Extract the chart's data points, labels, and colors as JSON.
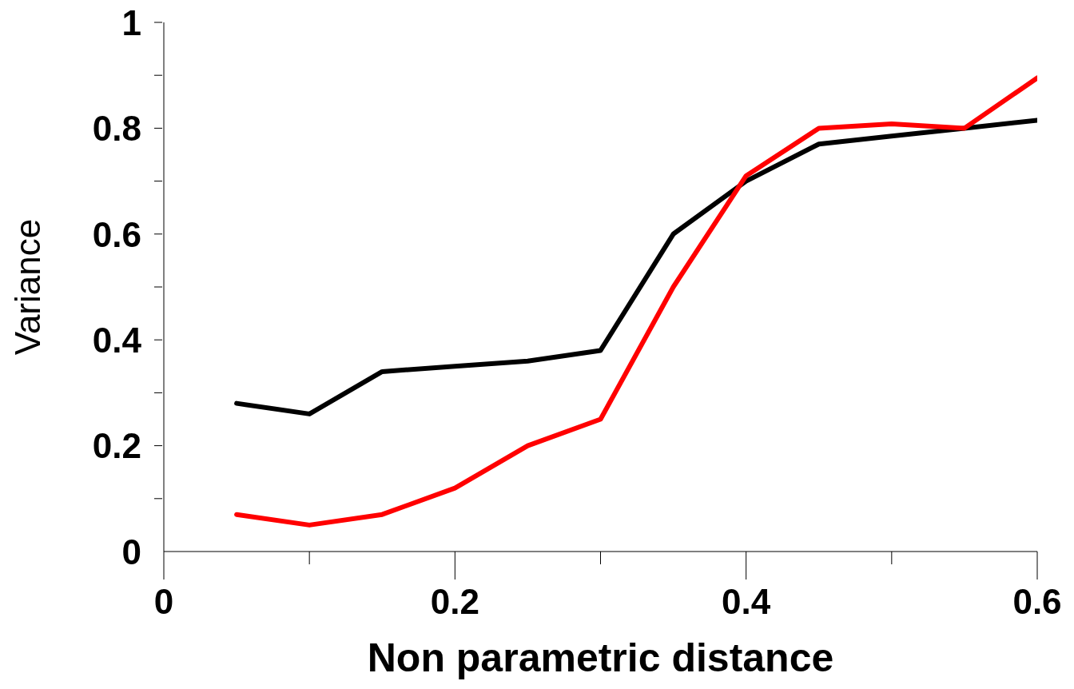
{
  "chart_data": {
    "type": "line",
    "xlabel": "Non parametric distance",
    "ylabel": "Variance",
    "x": [
      0.05,
      0.1,
      0.15,
      0.2,
      0.25,
      0.3,
      0.35,
      0.4,
      0.45,
      0.5,
      0.55,
      0.6
    ],
    "series": [
      {
        "color": "#000000",
        "values": [
          0.28,
          0.26,
          0.34,
          0.35,
          0.36,
          0.38,
          0.6,
          0.7,
          0.77,
          0.785,
          0.8,
          0.815
        ]
      },
      {
        "color": "#ff0000",
        "values": [
          0.07,
          0.05,
          0.07,
          0.12,
          0.2,
          0.25,
          0.5,
          0.71,
          0.8,
          0.808,
          0.8,
          0.895
        ]
      }
    ],
    "xlim": [
      0,
      0.6
    ],
    "xticks": [
      0,
      {
        "value": 0.1,
        "label": null
      },
      0.2,
      {
        "value": 0.3,
        "label": null
      },
      0.4,
      {
        "value": 0.5,
        "label": null
      },
      0.6
    ],
    "ylim": [
      0,
      1
    ],
    "yticks": [
      0,
      {
        "value": 0.1,
        "label": null
      },
      0.2,
      {
        "value": 0.3,
        "label": null
      },
      0.4,
      {
        "value": 0.5,
        "label": null
      },
      0.6,
      {
        "value": 0.7,
        "label": null
      },
      0.8,
      {
        "value": 0.9,
        "label": null
      },
      1
    ],
    "grid": false,
    "legend": false,
    "marker": "none",
    "line_style": "solid"
  }
}
